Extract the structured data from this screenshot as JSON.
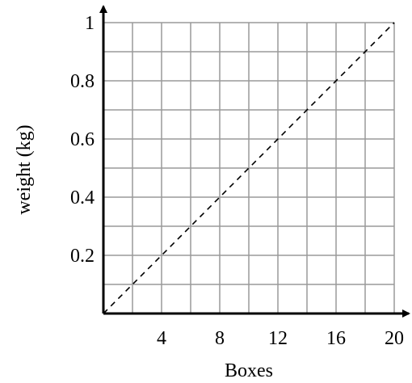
{
  "chart_data": {
    "type": "line",
    "xlabel": "Boxes",
    "ylabel": "weight (kg)",
    "xlim": [
      0,
      20
    ],
    "ylim": [
      0,
      1
    ],
    "grid": true,
    "x_grid_step": 2,
    "y_grid_step": 0.1,
    "x_ticks": [
      4,
      8,
      12,
      16,
      20
    ],
    "x_tick_labels": [
      "4",
      "8",
      "12",
      "16",
      "20"
    ],
    "y_ticks": [
      0.2,
      0.4,
      0.6,
      0.8,
      1
    ],
    "y_tick_labels": [
      "0.2",
      "0.4",
      "0.6",
      "0.8",
      "1"
    ],
    "series": [
      {
        "style": "dashed",
        "x": [
          0,
          20
        ],
        "y": [
          0,
          1
        ]
      }
    ],
    "colors": {
      "grid": "#9a9a9a",
      "axes": "#000000",
      "series": "#000000"
    }
  }
}
